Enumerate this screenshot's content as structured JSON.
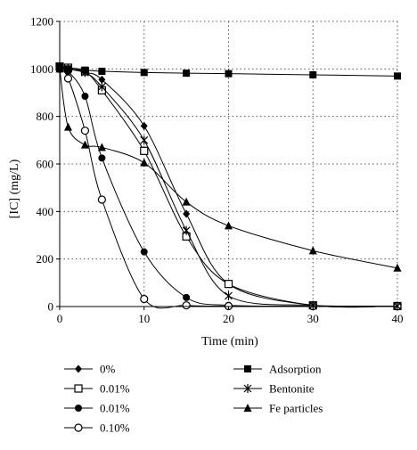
{
  "chart_data": {
    "type": "line",
    "title": "",
    "xlabel": "Time (min)",
    "ylabel": "[IC] (mg/L)",
    "xlim": [
      0,
      40
    ],
    "ylim": [
      0,
      1200
    ],
    "xticks": [
      0,
      10,
      20,
      30,
      40
    ],
    "yticks": [
      0,
      200,
      400,
      600,
      800,
      1000,
      1200
    ],
    "grid": "dotted",
    "legend_position": "bottom",
    "series": [
      {
        "name": "0%",
        "marker": "diamond",
        "points": [
          [
            0,
            1010
          ],
          [
            1,
            1000
          ],
          [
            3,
            985
          ],
          [
            5,
            955
          ],
          [
            10,
            760
          ],
          [
            15,
            390
          ],
          [
            20,
            95
          ],
          [
            30,
            5
          ],
          [
            40,
            2
          ]
        ]
      },
      {
        "name": "0.01%",
        "marker": "square-open",
        "points": [
          [
            0,
            1010
          ],
          [
            1,
            1005
          ],
          [
            3,
            990
          ],
          [
            5,
            910
          ],
          [
            10,
            655
          ],
          [
            15,
            295
          ],
          [
            20,
            95
          ],
          [
            30,
            5
          ],
          [
            40,
            2
          ]
        ]
      },
      {
        "name": "0.01%",
        "marker": "circle-filled",
        "points": [
          [
            0,
            1000
          ],
          [
            1,
            990
          ],
          [
            3,
            885
          ],
          [
            5,
            625
          ],
          [
            10,
            230
          ],
          [
            15,
            38
          ],
          [
            20,
            5
          ],
          [
            30,
            2
          ],
          [
            40,
            2
          ]
        ]
      },
      {
        "name": "0.10%",
        "marker": "circle-open",
        "points": [
          [
            0,
            1000
          ],
          [
            1,
            960
          ],
          [
            3,
            740
          ],
          [
            5,
            450
          ],
          [
            10,
            32
          ],
          [
            15,
            5
          ],
          [
            20,
            2
          ],
          [
            30,
            1
          ],
          [
            40,
            1
          ]
        ]
      },
      {
        "name": "Adsorption",
        "marker": "square-filled",
        "points": [
          [
            0,
            1010
          ],
          [
            1,
            1000
          ],
          [
            3,
            995
          ],
          [
            5,
            990
          ],
          [
            10,
            985
          ],
          [
            15,
            982
          ],
          [
            20,
            980
          ],
          [
            30,
            975
          ],
          [
            40,
            970
          ]
        ]
      },
      {
        "name": "Bentonite",
        "marker": "star",
        "points": [
          [
            0,
            1010
          ],
          [
            1,
            1000
          ],
          [
            3,
            985
          ],
          [
            5,
            925
          ],
          [
            10,
            700
          ],
          [
            15,
            320
          ],
          [
            20,
            45
          ],
          [
            30,
            5
          ],
          [
            40,
            2
          ]
        ]
      },
      {
        "name": "Fe particles",
        "marker": "triangle",
        "points": [
          [
            0,
            1000
          ],
          [
            1,
            755
          ],
          [
            3,
            680
          ],
          [
            5,
            670
          ],
          [
            10,
            605
          ],
          [
            15,
            440
          ],
          [
            20,
            340
          ],
          [
            30,
            235
          ],
          [
            40,
            162
          ]
        ]
      }
    ]
  }
}
